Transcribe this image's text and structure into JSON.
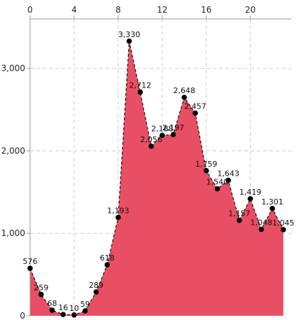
{
  "chart_data": {
    "type": "area",
    "x": [
      0,
      1,
      2,
      3,
      4,
      5,
      6,
      7,
      8,
      9,
      10,
      11,
      12,
      13,
      14,
      15,
      16,
      17,
      18,
      19,
      20,
      21,
      22,
      23
    ],
    "values": [
      576,
      259,
      68,
      16,
      10,
      59,
      289,
      618,
      1193,
      3330,
      2712,
      2056,
      2188,
      2197,
      2648,
      2457,
      1759,
      1540,
      1643,
      1157,
      1419,
      1048,
      1301,
      1045
    ],
    "value_labels": [
      "576",
      "259",
      "68",
      "16",
      "10",
      "59",
      "289",
      "618",
      "1,193",
      "3,330",
      "2,712",
      "2,056",
      "2,188",
      "2,197",
      "2,648",
      "2,457",
      "1,759",
      "1,540",
      "1,643",
      "1,157",
      "1,419",
      "1,048",
      "1,301",
      "1,045"
    ],
    "x_ticks": [
      0,
      4,
      8,
      12,
      16,
      20
    ],
    "x_tick_labels": [
      "0",
      "4",
      "8",
      "12",
      "16",
      "20"
    ],
    "y_ticks": [
      0,
      1000,
      2000,
      3000
    ],
    "y_tick_labels": [
      "0",
      "1,000",
      "2,000",
      "3,000"
    ],
    "xlim": [
      0,
      23.1
    ],
    "ylim": [
      0,
      3600
    ],
    "x_axis_position": "top",
    "grid": true,
    "line_style": "dashed",
    "colors": {
      "fill": "#e94f64",
      "line": "#111111",
      "marker": "#000000",
      "grid": "#cccccc",
      "axis": "#999999"
    }
  }
}
